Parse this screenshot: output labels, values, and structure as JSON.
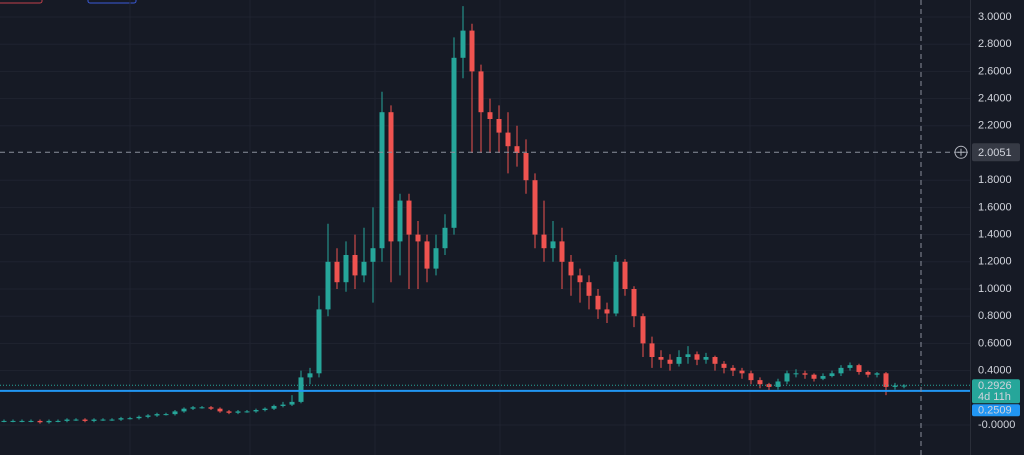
{
  "chart_data": {
    "type": "candlestick",
    "open": [
      0.03,
      0.03,
      0.03,
      0.03,
      0.03,
      0.02,
      0.03,
      0.03,
      0.04,
      0.04,
      0.03,
      0.04,
      0.04,
      0.04,
      0.05,
      0.05,
      0.06,
      0.07,
      0.08,
      0.08,
      0.1,
      0.12,
      0.13,
      0.13,
      0.12,
      0.1,
      0.09,
      0.1,
      0.1,
      0.11,
      0.12,
      0.14,
      0.15,
      0.17,
      0.35,
      0.38,
      0.85,
      1.2,
      1.05,
      1.25,
      1.1,
      1.2,
      1.3,
      2.3,
      1.35,
      1.65,
      1.4,
      1.35,
      1.15,
      1.3,
      1.45,
      2.7,
      2.9,
      2.6,
      2.3,
      2.25,
      2.15,
      2.05,
      2.0,
      1.8,
      1.4,
      1.3,
      1.35,
      1.2,
      1.1,
      1.05,
      0.95,
      0.85,
      0.82,
      1.2,
      1.0,
      0.8,
      0.6,
      0.5,
      0.48,
      0.45,
      0.5,
      0.52,
      0.48,
      0.5,
      0.45,
      0.42,
      0.4,
      0.38,
      0.33,
      0.3,
      0.28,
      0.32,
      0.38,
      0.38,
      0.37,
      0.34,
      0.36,
      0.38,
      0.42,
      0.44,
      0.39,
      0.37,
      0.38,
      0.28,
      0.29
    ],
    "high": [
      0.04,
      0.04,
      0.04,
      0.04,
      0.04,
      0.04,
      0.04,
      0.05,
      0.05,
      0.05,
      0.05,
      0.05,
      0.05,
      0.06,
      0.06,
      0.07,
      0.08,
      0.09,
      0.09,
      0.11,
      0.13,
      0.14,
      0.14,
      0.14,
      0.13,
      0.11,
      0.11,
      0.11,
      0.12,
      0.13,
      0.15,
      0.17,
      0.22,
      0.4,
      0.42,
      0.95,
      1.48,
      1.3,
      1.35,
      1.4,
      1.45,
      1.6,
      2.45,
      2.35,
      1.7,
      1.7,
      1.5,
      1.4,
      1.4,
      1.55,
      2.85,
      3.08,
      2.95,
      2.65,
      2.4,
      2.35,
      2.3,
      2.2,
      2.1,
      1.85,
      1.65,
      1.5,
      1.45,
      1.25,
      1.15,
      1.1,
      1.0,
      0.9,
      1.25,
      1.22,
      1.02,
      0.82,
      0.65,
      0.55,
      0.52,
      0.55,
      0.58,
      0.54,
      0.53,
      0.51,
      0.47,
      0.44,
      0.42,
      0.4,
      0.35,
      0.31,
      0.34,
      0.4,
      0.41,
      0.4,
      0.38,
      0.38,
      0.4,
      0.44,
      0.46,
      0.45,
      0.4,
      0.39,
      0.39,
      0.31,
      0.3
    ],
    "low": [
      0.02,
      0.02,
      0.02,
      0.02,
      0.01,
      0.01,
      0.02,
      0.02,
      0.03,
      0.02,
      0.02,
      0.03,
      0.03,
      0.03,
      0.04,
      0.04,
      0.05,
      0.06,
      0.07,
      0.07,
      0.09,
      0.11,
      0.12,
      0.11,
      0.09,
      0.08,
      0.08,
      0.09,
      0.09,
      0.1,
      0.11,
      0.13,
      0.14,
      0.16,
      0.3,
      0.35,
      0.8,
      1.0,
      0.98,
      1.0,
      1.05,
      0.9,
      1.2,
      1.05,
      1.1,
      1.0,
      1.0,
      1.05,
      1.1,
      1.25,
      1.4,
      2.55,
      2.0,
      2.0,
      2.0,
      2.0,
      1.85,
      1.9,
      1.7,
      1.3,
      1.2,
      1.2,
      1.0,
      0.95,
      0.9,
      0.85,
      0.78,
      0.75,
      0.8,
      0.95,
      0.72,
      0.5,
      0.42,
      0.42,
      0.4,
      0.43,
      0.45,
      0.44,
      0.45,
      0.4,
      0.38,
      0.36,
      0.34,
      0.3,
      0.27,
      0.25,
      0.26,
      0.3,
      0.35,
      0.34,
      0.32,
      0.33,
      0.35,
      0.36,
      0.4,
      0.37,
      0.35,
      0.35,
      0.22,
      0.26,
      0.27
    ],
    "close": [
      0.03,
      0.03,
      0.03,
      0.03,
      0.02,
      0.03,
      0.03,
      0.04,
      0.04,
      0.03,
      0.04,
      0.04,
      0.04,
      0.05,
      0.05,
      0.06,
      0.07,
      0.08,
      0.08,
      0.1,
      0.12,
      0.13,
      0.13,
      0.12,
      0.1,
      0.09,
      0.1,
      0.1,
      0.11,
      0.12,
      0.14,
      0.15,
      0.17,
      0.35,
      0.38,
      0.85,
      1.2,
      1.05,
      1.25,
      1.1,
      1.2,
      1.3,
      2.3,
      1.35,
      1.65,
      1.4,
      1.35,
      1.15,
      1.3,
      1.45,
      2.7,
      2.9,
      2.6,
      2.3,
      2.25,
      2.15,
      2.05,
      2.0,
      1.8,
      1.4,
      1.3,
      1.35,
      1.2,
      1.1,
      1.05,
      0.95,
      0.85,
      0.82,
      1.2,
      1.0,
      0.8,
      0.6,
      0.5,
      0.48,
      0.45,
      0.5,
      0.52,
      0.48,
      0.5,
      0.45,
      0.42,
      0.4,
      0.38,
      0.33,
      0.3,
      0.28,
      0.32,
      0.38,
      0.38,
      0.37,
      0.34,
      0.36,
      0.38,
      0.42,
      0.44,
      0.39,
      0.37,
      0.38,
      0.28,
      0.29,
      0.29
    ],
    "up_color": "#26a69a",
    "down_color": "#ef5350",
    "ylim": [
      -0.2206,
      3.125
    ],
    "yticks": [
      {
        "value": 3,
        "label": "3.0000"
      },
      {
        "value": 2.8,
        "label": "2.8000"
      },
      {
        "value": 2.6,
        "label": "2.6000"
      },
      {
        "value": 2.4,
        "label": "2.4000"
      },
      {
        "value": 2.2,
        "label": "2.2000"
      },
      {
        "value": 1.8,
        "label": "1.8000"
      },
      {
        "value": 1.6,
        "label": "1.6000"
      },
      {
        "value": 1.4,
        "label": "1.4000"
      },
      {
        "value": 1.2,
        "label": "1.2000"
      },
      {
        "value": 1,
        "label": "1.0000"
      },
      {
        "value": 0.8,
        "label": "0.8000"
      },
      {
        "value": 0.6,
        "label": "0.6000"
      },
      {
        "value": 0.4,
        "label": "0.4000"
      },
      {
        "value": 0,
        "label": "-0.0000"
      }
    ],
    "grid": true,
    "last_price": {
      "value": 0.2926,
      "color": "#26a69a",
      "countdown": "4d 11h"
    },
    "price_line": {
      "value": 0.2509,
      "color": "#2196f3"
    },
    "crosshair": 2.0051
  }
}
